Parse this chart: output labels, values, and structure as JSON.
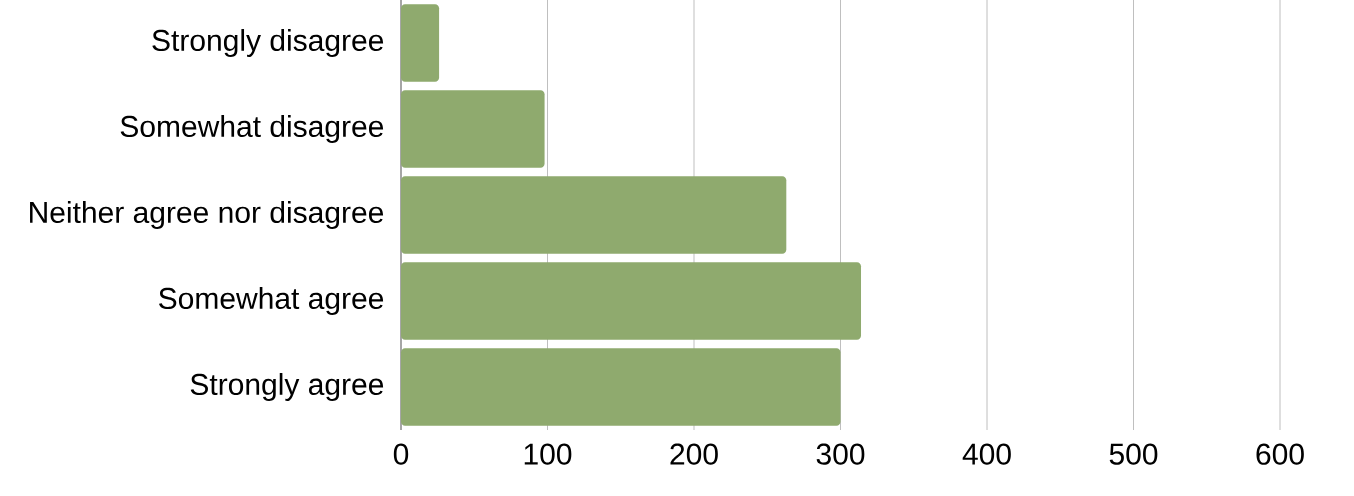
{
  "chart_data": {
    "type": "bar",
    "orientation": "horizontal",
    "categories": [
      "Strongly disagree",
      "Somewhat disagree",
      "Neither agree nor disagree",
      "Somewhat agree",
      "Strongly agree"
    ],
    "values": [
      26,
      98,
      263,
      314,
      300
    ],
    "color": "#8faa6e",
    "xlim": [
      0,
      600
    ],
    "xticks": [
      0,
      100,
      200,
      300,
      400,
      500,
      600
    ],
    "grid": "x"
  }
}
